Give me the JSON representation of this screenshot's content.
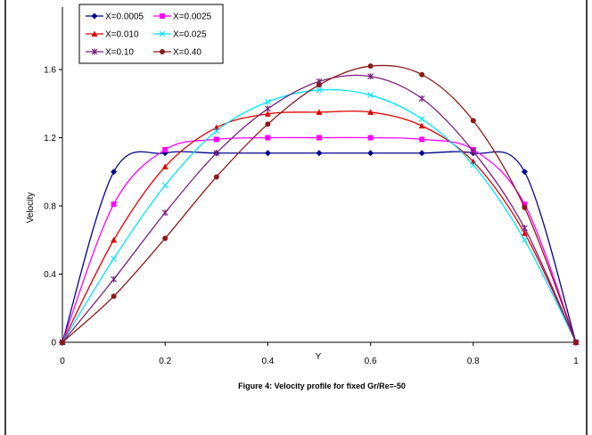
{
  "chart_data": {
    "type": "line",
    "caption": "Figure 4: Velocity profile for fixed Gr/Re=-50",
    "xlabel": "Y",
    "ylabel": "Velocity",
    "xlim": [
      0,
      1
    ],
    "ylim": [
      0,
      1.6
    ],
    "xticks": [
      "0",
      "0.2",
      "0.4",
      "0.6",
      "0.8",
      "1"
    ],
    "yticks": [
      "0",
      "0.4",
      "0.8",
      "1.2",
      "1.6"
    ],
    "grid": false,
    "legend_position": "top-left",
    "x": [
      0,
      0.1,
      0.2,
      0.3,
      0.4,
      0.5,
      0.6,
      0.7,
      0.8,
      0.9,
      1.0
    ],
    "series": [
      {
        "name": "X=0.0005",
        "color": "#00008b",
        "marker": "diamond",
        "values": [
          0,
          1.0,
          1.11,
          1.11,
          1.11,
          1.11,
          1.11,
          1.11,
          1.11,
          1.0,
          0
        ]
      },
      {
        "name": "X=0.0025",
        "color": "#ff00ff",
        "marker": "square",
        "values": [
          0,
          0.81,
          1.13,
          1.19,
          1.2,
          1.2,
          1.2,
          1.19,
          1.13,
          0.81,
          0
        ]
      },
      {
        "name": "X=0.010",
        "color": "#e00000",
        "marker": "triangle",
        "values": [
          0,
          0.6,
          1.03,
          1.26,
          1.34,
          1.35,
          1.35,
          1.27,
          1.06,
          0.64,
          0
        ]
      },
      {
        "name": "X=0.025",
        "color": "#00e5ff",
        "marker": "x",
        "values": [
          0,
          0.49,
          0.92,
          1.24,
          1.41,
          1.48,
          1.45,
          1.31,
          1.04,
          0.6,
          0
        ]
      },
      {
        "name": "X=0.10",
        "color": "#7b1f7b",
        "marker": "star",
        "values": [
          0,
          0.37,
          0.76,
          1.11,
          1.37,
          1.53,
          1.56,
          1.43,
          1.12,
          0.67,
          0
        ]
      },
      {
        "name": "X=0.40",
        "color": "#8b1a1a",
        "marker": "circle",
        "values": [
          0,
          0.27,
          0.61,
          0.97,
          1.28,
          1.51,
          1.62,
          1.57,
          1.3,
          0.79,
          0
        ]
      }
    ]
  }
}
